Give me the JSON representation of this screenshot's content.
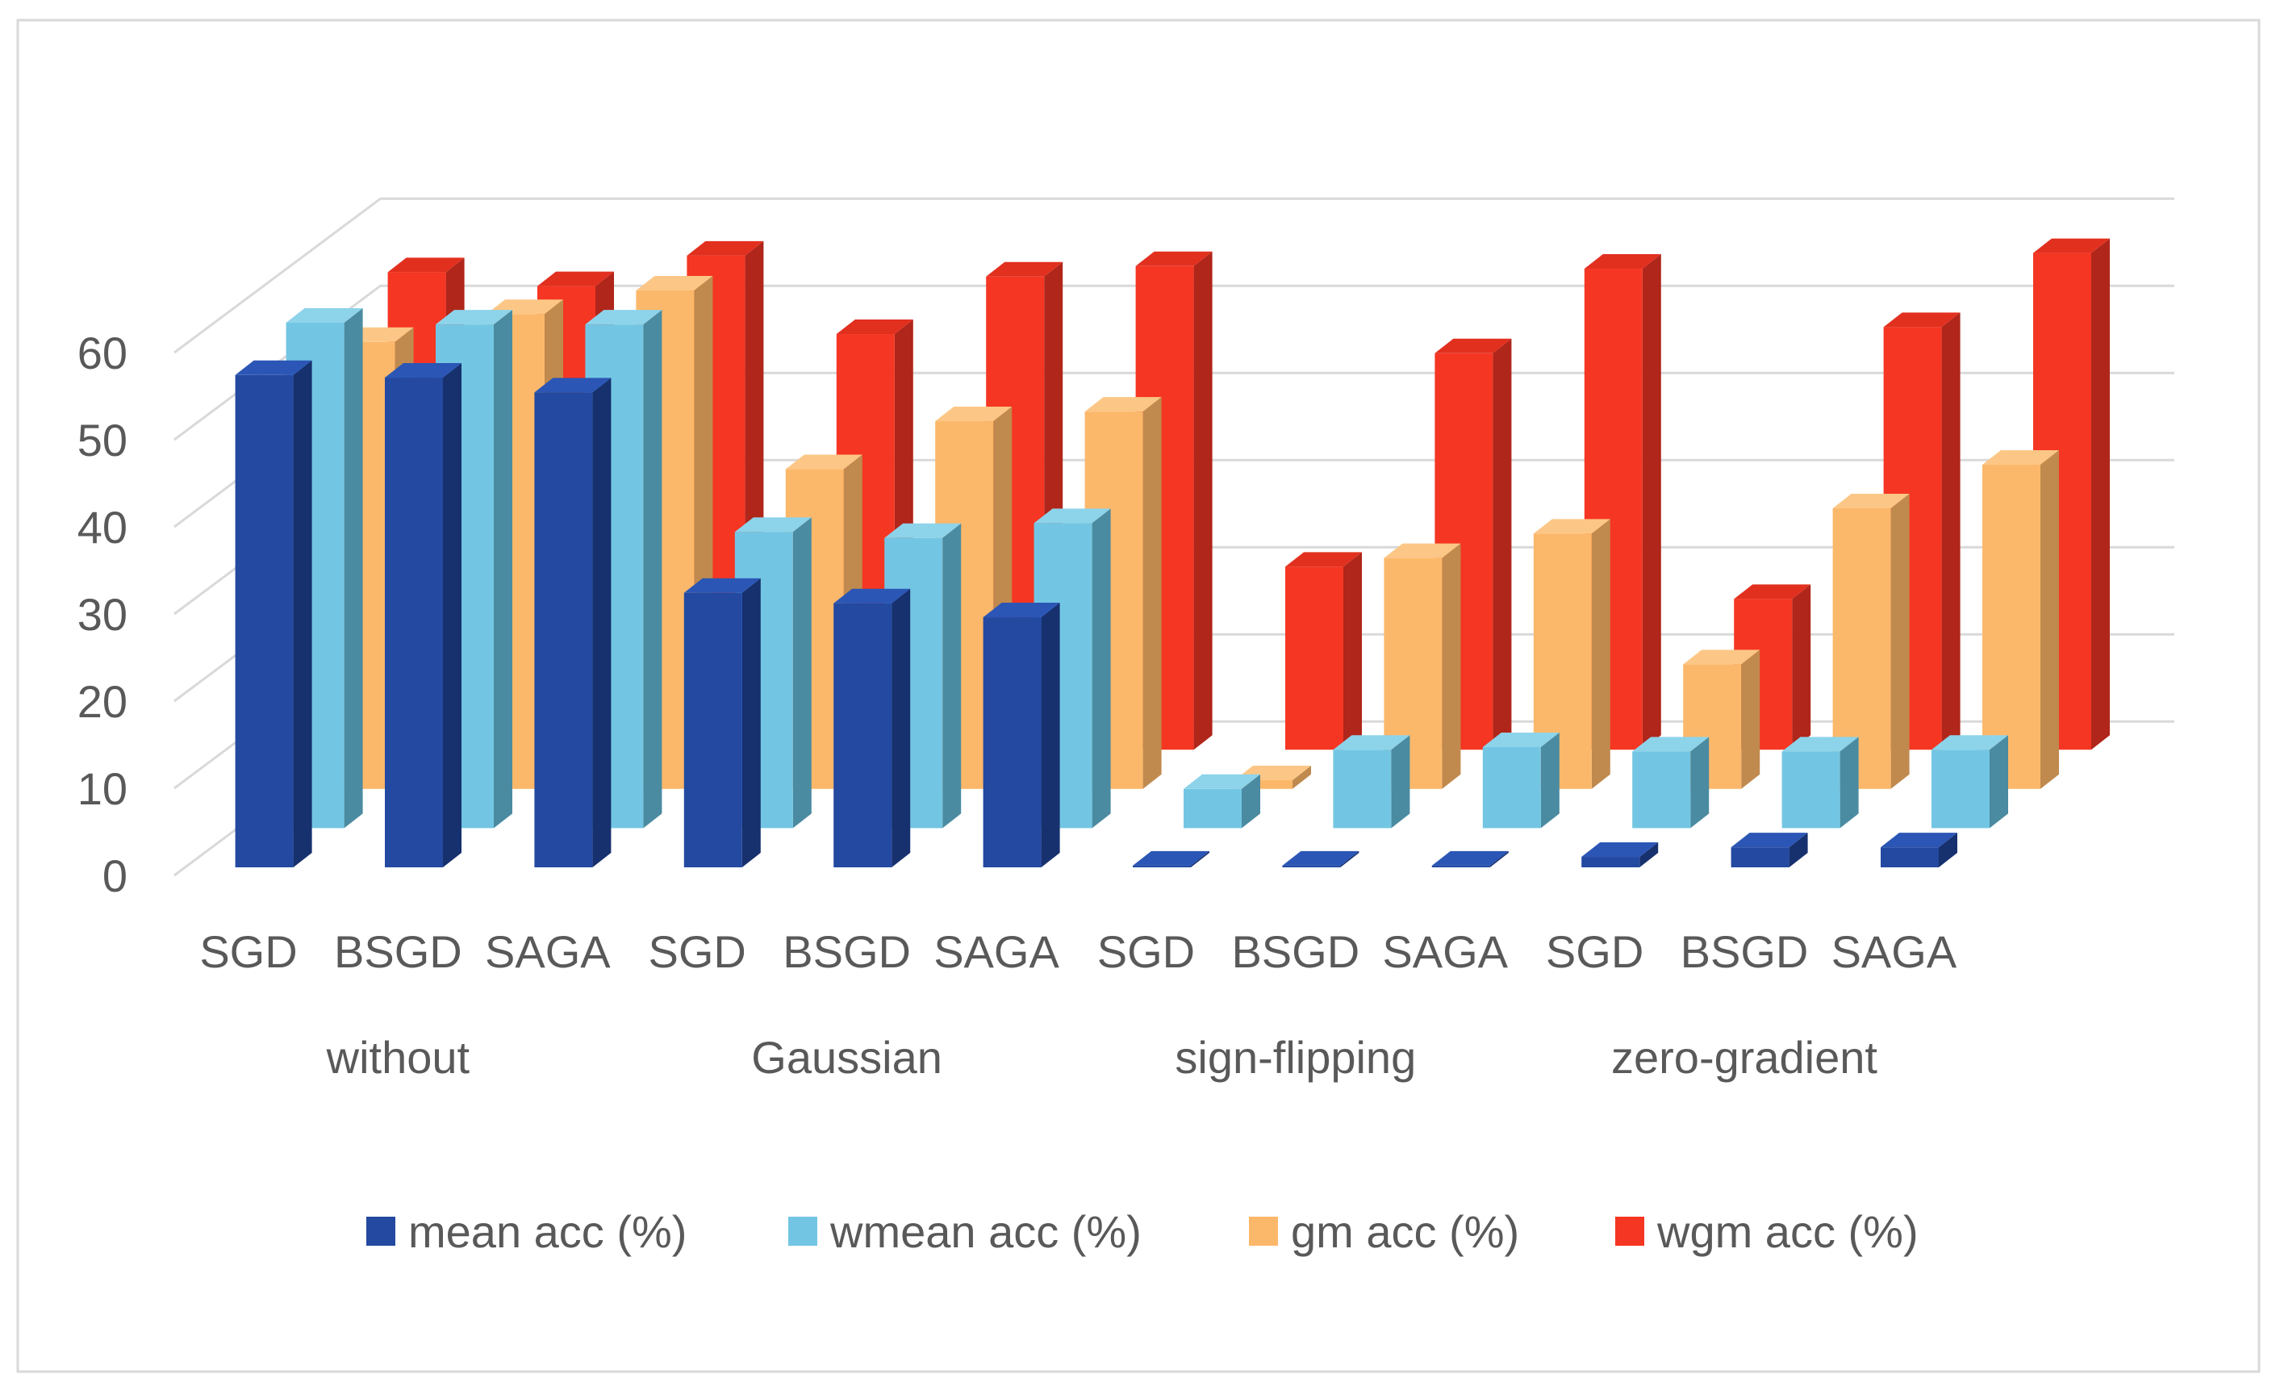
{
  "chart_data": {
    "type": "bar",
    "style": "3d-clustered-rows",
    "ylim": [
      0,
      60
    ],
    "yticks": [
      0,
      10,
      20,
      30,
      40,
      50,
      60
    ],
    "categories": [
      "SGD",
      "BSGD",
      "SAGA",
      "SGD",
      "BSGD",
      "SAGA",
      "SGD",
      "BSGD",
      "SAGA",
      "SGD",
      "BSGD",
      "SAGA"
    ],
    "groups": [
      "without",
      "Gaussian",
      "sign-flipping",
      "zero-gradient"
    ],
    "legend": "bottom",
    "series": [
      {
        "name": "mean acc (%)",
        "color": "#2349A1",
        "side_color": "#17306E",
        "top_color": "#2B56B5",
        "values": [
          56.5,
          56.2,
          54.5,
          31.5,
          30.3,
          28.7,
          0.2,
          0.2,
          0.2,
          1.2,
          2.3,
          2.3
        ]
      },
      {
        "name": "wmean acc (%)",
        "color": "#73C6E3",
        "side_color": "#4A8BA1",
        "top_color": "#8DD3EA",
        "values": [
          58.0,
          57.8,
          57.8,
          34.0,
          33.3,
          35.0,
          4.5,
          9.0,
          9.3,
          8.8,
          8.8,
          9.0
        ]
      },
      {
        "name": "gm acc (%)",
        "color": "#FCB86A",
        "side_color": "#C08A4E",
        "top_color": "#FCC786",
        "values": [
          51.3,
          54.5,
          57.2,
          36.7,
          42.2,
          43.3,
          1.0,
          26.5,
          29.3,
          14.3,
          32.2,
          37.2
        ]
      },
      {
        "name": "wgm acc (%)",
        "color": "#F53623",
        "side_color": "#B0261A",
        "top_color": "#E2301F",
        "values": [
          54.8,
          53.2,
          56.7,
          47.7,
          54.3,
          55.5,
          21.0,
          45.5,
          55.2,
          17.3,
          48.5,
          57.0
        ]
      }
    ]
  }
}
